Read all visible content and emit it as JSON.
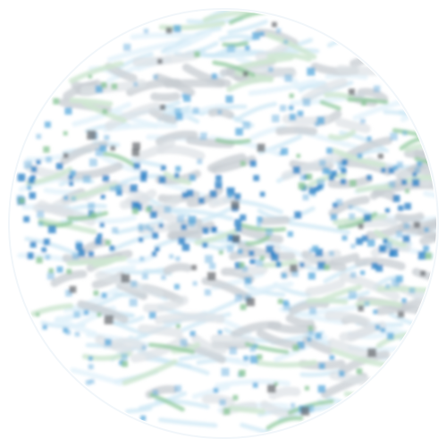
{
  "map": {
    "style": "blurred circular mosaic of short colored strokes and small squares",
    "colors": {
      "background": "#ffffff",
      "disc_edge": "#f1f6fa",
      "light_blue": "#cfe8f6",
      "pale_blue": "#e3f2fb",
      "mid_blue": "#5aa9dc",
      "deep_blue": "#2f84c8",
      "green": "#8cc79a",
      "pale_green": "#cfe8d2",
      "gray": "#c7ccd1",
      "light_gray": "#dde1e5",
      "dark_gray": "#6c7075"
    },
    "layer_names": [
      "pale-blue-strokes",
      "gray-strokes",
      "green-strokes",
      "light-blue-dots",
      "blue-dots",
      "green-dots",
      "dark-gray-dots"
    ]
  }
}
